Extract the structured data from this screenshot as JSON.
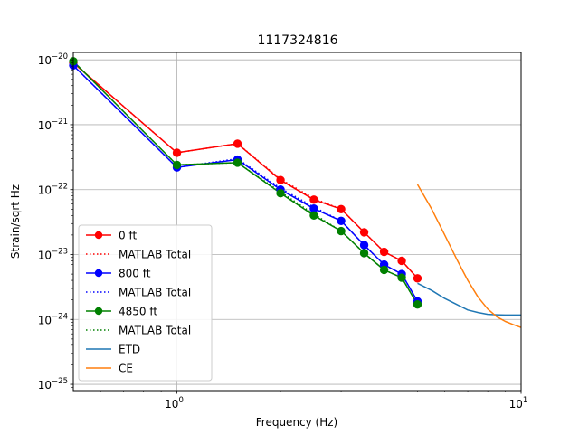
{
  "chart_data": {
    "type": "line",
    "title": "1117324816",
    "xlabel": "Frequency (Hz)",
    "ylabel": "Strain/sqrt Hz",
    "xscale": "log",
    "yscale": "log",
    "xlim": [
      0.5,
      10
    ],
    "ylim": [
      8e-26,
      1.3e-20
    ],
    "xticks": [
      {
        "value": 1,
        "base": "10",
        "exp": "0"
      },
      {
        "value": 10,
        "base": "10",
        "exp": "1"
      }
    ],
    "yticks": [
      {
        "value": 1e-25,
        "base": "10",
        "exp": "−25"
      },
      {
        "value": 1e-24,
        "base": "10",
        "exp": "−24"
      },
      {
        "value": 1e-23,
        "base": "10",
        "exp": "−23"
      },
      {
        "value": 1e-22,
        "base": "10",
        "exp": "−22"
      },
      {
        "value": 1e-21,
        "base": "10",
        "exp": "−21"
      },
      {
        "value": 1e-20,
        "base": "10",
        "exp": "−20"
      }
    ],
    "grid": true,
    "legend_position": "lower-left",
    "series": [
      {
        "name": "0 ft",
        "style": "solid-marker",
        "color": "#ff0000",
        "x": [
          0.5,
          1.0,
          1.5,
          2.0,
          2.5,
          3.0,
          3.5,
          4.0,
          4.5,
          5.0
        ],
        "y": [
          9e-21,
          3.7e-22,
          5.1e-22,
          1.4e-22,
          7e-23,
          5e-23,
          2.2e-23,
          1.1e-23,
          8e-24,
          4.3e-24
        ]
      },
      {
        "name": "MATLAB Total",
        "style": "dotted",
        "color": "#ff0000",
        "x": [
          0.5,
          1.0,
          1.5,
          2.0,
          2.5,
          3.0,
          3.5,
          4.0,
          4.5,
          5.0
        ],
        "y": [
          9e-21,
          3.7e-22,
          5.1e-22,
          1.45e-22,
          7.3e-23,
          5e-23,
          2.2e-23,
          1.1e-23,
          8e-24,
          4.3e-24
        ]
      },
      {
        "name": "800 ft",
        "style": "solid-marker",
        "color": "#0000ff",
        "x": [
          0.5,
          1.0,
          1.5,
          2.0,
          2.5,
          3.0,
          3.5,
          4.0,
          4.5,
          5.0
        ],
        "y": [
          8.2e-21,
          2.2e-22,
          2.9e-22,
          1e-22,
          5.1e-23,
          3.3e-23,
          1.4e-23,
          7e-24,
          5e-24,
          1.9e-24
        ]
      },
      {
        "name": "MATLAB Total",
        "style": "dotted",
        "color": "#0000ff",
        "x": [
          0.5,
          1.0,
          1.5,
          2.0,
          2.5,
          3.0,
          3.5,
          4.0,
          4.5,
          5.0
        ],
        "y": [
          8.2e-21,
          2.2e-22,
          3e-22,
          1.05e-22,
          5.4e-23,
          3.3e-23,
          1.4e-23,
          7e-24,
          5e-24,
          1.9e-24
        ]
      },
      {
        "name": "4850 ft",
        "style": "solid-marker",
        "color": "#008000",
        "x": [
          0.5,
          1.0,
          1.5,
          2.0,
          2.5,
          3.0,
          3.5,
          4.0,
          4.5,
          5.0
        ],
        "y": [
          9.5e-21,
          2.4e-22,
          2.6e-22,
          8.8e-23,
          4e-23,
          2.3e-23,
          1.05e-23,
          5.8e-24,
          4.4e-24,
          1.7e-24
        ]
      },
      {
        "name": "MATLAB Total",
        "style": "dotted",
        "color": "#008000",
        "x": [
          0.5,
          1.0,
          1.5,
          2.0,
          2.5,
          3.0,
          3.5,
          4.0,
          4.5,
          5.0
        ],
        "y": [
          9.5e-21,
          2.4e-22,
          2.6e-22,
          9.2e-23,
          4.2e-23,
          2.3e-23,
          1.05e-23,
          5.8e-24,
          4.4e-24,
          1.7e-24
        ]
      },
      {
        "name": "ETD",
        "style": "line",
        "color": "#1f77b4",
        "x": [
          5.0,
          5.5,
          6.0,
          6.5,
          7.0,
          7.5,
          8.0,
          8.5,
          9.0,
          10.0
        ],
        "y": [
          3.6e-24,
          2.8e-24,
          2.1e-24,
          1.7e-24,
          1.4e-24,
          1.28e-24,
          1.2e-24,
          1.18e-24,
          1.17e-24,
          1.17e-24
        ]
      },
      {
        "name": "CE",
        "style": "line",
        "color": "#ff7f0e",
        "x": [
          5.0,
          5.5,
          6.0,
          6.5,
          7.0,
          7.5,
          8.0,
          8.5,
          9.0,
          9.5,
          10.0
        ],
        "y": [
          1.2e-22,
          5e-23,
          2e-23,
          8.5e-24,
          4e-24,
          2.2e-24,
          1.45e-24,
          1.1e-24,
          9.3e-25,
          8.3e-25,
          7.5e-25
        ]
      }
    ]
  }
}
